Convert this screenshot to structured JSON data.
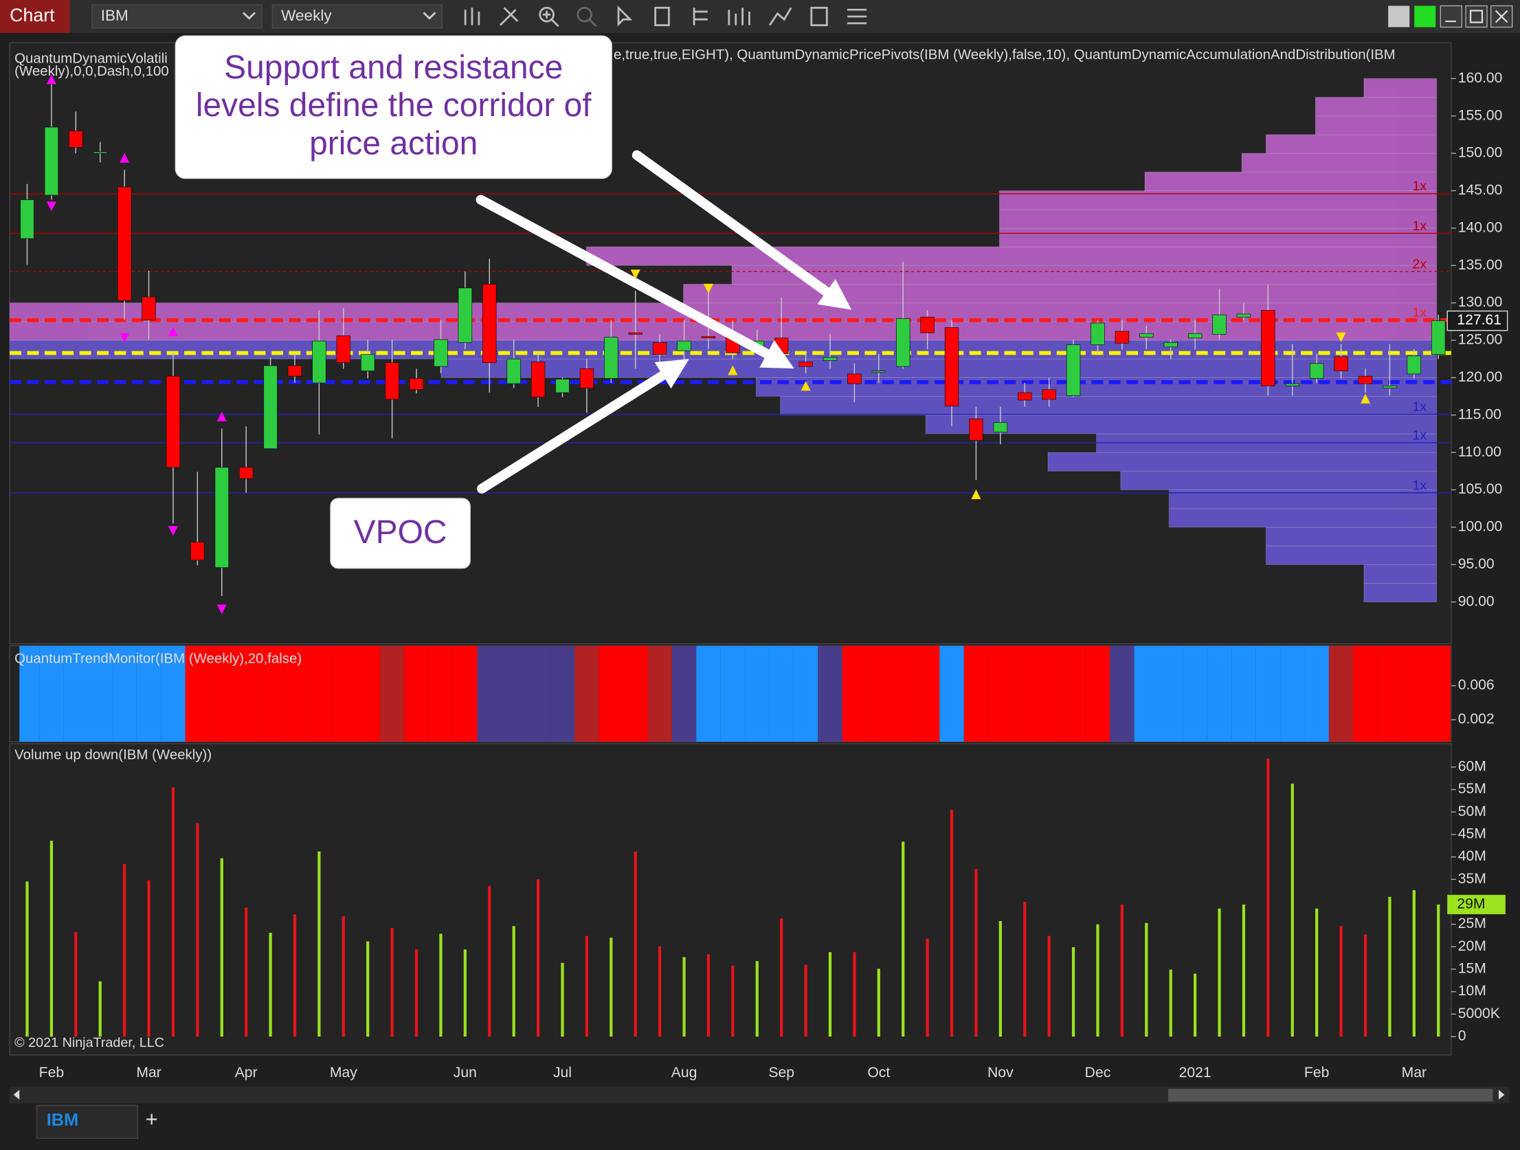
{
  "toolbar": {
    "app_label": "Chart",
    "instrument": "IBM",
    "interval": "Weekly"
  },
  "tabs": {
    "items": [
      "IBM"
    ],
    "add": "+"
  },
  "chart_data": {
    "type": "candlestick",
    "categories": [
      null,
      "Feb",
      null,
      null,
      null,
      "Mar",
      null,
      null,
      null,
      "Apr",
      null,
      null,
      null,
      "May",
      null,
      null,
      null,
      null,
      "Jun",
      null,
      null,
      null,
      "Jul",
      null,
      null,
      null,
      null,
      "Aug",
      null,
      null,
      null,
      "Sep",
      null,
      null,
      null,
      "Oct",
      null,
      null,
      null,
      null,
      "Nov",
      null,
      null,
      null,
      "Dec",
      null,
      null,
      null,
      "2021",
      null,
      null,
      null,
      null,
      "Feb",
      null,
      null,
      null,
      "Mar",
      null
    ],
    "copyright": "© 2021 NinjaTrader, LLC",
    "annotations": [
      {
        "lines": [
          "Support and resistance",
          "levels define the corridor of",
          "price action"
        ]
      },
      {
        "lines": [
          "VPOC"
        ]
      }
    ],
    "price_panel": {
      "indicator_text": [
        "QuantumDynamicVolatili",
        "e,true,true,EIGHT), QuantumDynamicPricePivots(IBM (Weekly),false,10), QuantumDynamicAccumulationAndDistribution(IBM",
        "(Weekly),0,0,Dash,0,100"
      ],
      "up_color": "#2ecc40",
      "down_color": "#ff0000",
      "open": [
        138.6,
        144.4,
        153.0,
        150.2,
        145.5,
        130.8,
        120.2,
        98.0,
        94.6,
        108.0,
        110.5,
        121.6,
        119.3,
        125.6,
        120.9,
        122.0,
        119.9,
        121.5,
        124.7,
        132.5,
        119.2,
        122.1,
        118.0,
        121.2,
        119.9,
        126.0,
        124.7,
        123.6,
        125.5,
        125.4,
        124.1,
        125.3,
        122.1,
        122.3,
        120.5,
        120.9,
        121.5,
        128.1,
        126.7,
        114.5,
        112.7,
        118.0,
        118.4,
        117.6,
        124.4,
        126.2,
        125.4,
        124.1,
        125.3,
        125.8,
        128.1,
        129.0,
        118.9,
        119.9,
        122.8,
        120.2,
        118.6,
        120.5,
        123.1
      ],
      "high": [
        145.9,
        159.2,
        155.6,
        151.5,
        147.8,
        134.3,
        123.6,
        107.4,
        113.2,
        113.5,
        122.7,
        123.2,
        129.0,
        129.3,
        125.1,
        125.1,
        121.2,
        127.7,
        134.2,
        135.9,
        125.1,
        123.5,
        120.0,
        122.5,
        127.7,
        131.6,
        125.8,
        127.7,
        131.6,
        127.7,
        126.4,
        130.7,
        123.2,
        125.8,
        121.9,
        123.2,
        135.5,
        129.0,
        127.7,
        116.1,
        116.1,
        119.3,
        120.0,
        125.1,
        127.7,
        127.7,
        126.9,
        125.1,
        127.7,
        131.9,
        130.0,
        132.4,
        124.5,
        123.2,
        124.5,
        121.2,
        124.5,
        123.8,
        128.4
      ],
      "low": [
        135.1,
        143.8,
        150.0,
        148.8,
        127.7,
        125.1,
        100.5,
        94.9,
        90.8,
        104.6,
        110.5,
        119.3,
        112.4,
        121.2,
        119.9,
        111.9,
        117.9,
        120.6,
        123.8,
        118.0,
        118.6,
        116.1,
        117.4,
        115.3,
        119.3,
        121.2,
        121.9,
        121.9,
        123.8,
        122.5,
        123.2,
        121.9,
        120.6,
        121.2,
        116.7,
        119.3,
        121.2,
        123.8,
        113.5,
        106.3,
        111.1,
        116.1,
        116.1,
        117.4,
        123.2,
        123.8,
        123.8,
        122.5,
        123.8,
        125.1,
        127.7,
        117.6,
        117.6,
        119.3,
        119.9,
        118.0,
        117.6,
        119.9,
        122.5
      ],
      "close": [
        143.8,
        153.5,
        150.8,
        150.2,
        130.3,
        127.7,
        108.0,
        95.6,
        108.0,
        106.5,
        121.6,
        120.2,
        124.9,
        122.0,
        123.1,
        117.1,
        118.4,
        125.1,
        132.0,
        122.0,
        122.5,
        117.4,
        119.8,
        118.6,
        125.4,
        125.8,
        123.1,
        124.9,
        125.4,
        123.3,
        124.9,
        123.2,
        121.5,
        122.7,
        119.2,
        120.9,
        127.9,
        126.0,
        116.2,
        111.6,
        114.0,
        117.0,
        117.1,
        124.4,
        127.3,
        124.6,
        125.9,
        124.7,
        125.9,
        128.4,
        128.5,
        118.9,
        119.2,
        121.9,
        120.9,
        119.2,
        118.9,
        122.9,
        127.61
      ],
      "ylim": [
        84.4,
        164.8
      ],
      "yticks": [
        {
          "value": 90,
          "label": "90.00"
        },
        {
          "value": 95,
          "label": "95.00"
        },
        {
          "value": 100,
          "label": "100.00"
        },
        {
          "value": 105,
          "label": "105.00"
        },
        {
          "value": 110,
          "label": "110.00"
        },
        {
          "value": 115,
          "label": "115.00"
        },
        {
          "value": 120,
          "label": "120.00"
        },
        {
          "value": 125,
          "label": "125.00"
        },
        {
          "value": 130,
          "label": "130.00"
        },
        {
          "value": 135,
          "label": "135.00"
        },
        {
          "value": 140,
          "label": "140.00"
        },
        {
          "value": 145,
          "label": "145.00"
        },
        {
          "value": 150,
          "label": "150.00"
        },
        {
          "value": 155,
          "label": "155.00"
        },
        {
          "value": 160,
          "label": "160.00"
        }
      ],
      "levels": [
        {
          "value": 144.6,
          "color": "#b00000",
          "style": "thin",
          "label": "1x"
        },
        {
          "value": 139.3,
          "color": "#b00000",
          "style": "thin",
          "label": "1x"
        },
        {
          "value": 134.2,
          "color": "#c00000",
          "style": "dotted",
          "label": "2x"
        },
        {
          "value": 127.7,
          "color": "#ff1a1a",
          "style": "thick",
          "label": "1x"
        },
        {
          "value": 123.3,
          "color": "#f5f500",
          "style": "thick"
        },
        {
          "value": 119.4,
          "color": "#1a1aff",
          "style": "thick"
        },
        {
          "value": 115.1,
          "color": "#2020c0",
          "style": "thin",
          "label": "1x"
        },
        {
          "value": 111.3,
          "color": "#2020c0",
          "style": "thin",
          "label": "1x"
        },
        {
          "value": 104.6,
          "color": "#2020c0",
          "style": "thin",
          "label": "1x"
        }
      ],
      "pivots": [
        {
          "index": 1,
          "value": 159.9,
          "color": "#ff00ff",
          "dir": "up"
        },
        {
          "index": 1,
          "value": 142.9,
          "color": "#ff00ff",
          "dir": "down"
        },
        {
          "index": 4,
          "value": 149.4,
          "color": "#ff00ff",
          "dir": "up"
        },
        {
          "index": 4,
          "value": 125.3,
          "color": "#ff00ff",
          "dir": "down"
        },
        {
          "index": 6,
          "value": 126.2,
          "color": "#ff00ff",
          "dir": "up"
        },
        {
          "index": 6,
          "value": 99.5,
          "color": "#ff00ff",
          "dir": "down"
        },
        {
          "index": 8,
          "value": 114.8,
          "color": "#ff00ff",
          "dir": "up"
        },
        {
          "index": 8,
          "value": 89.0,
          "color": "#ff00ff",
          "dir": "down"
        },
        {
          "index": 25,
          "value": 133.8,
          "color": "#ffe000",
          "dir": "down"
        },
        {
          "index": 28,
          "value": 131.9,
          "color": "#ffe000",
          "dir": "down"
        },
        {
          "index": 29,
          "value": 121.0,
          "color": "#ffe000",
          "dir": "up"
        },
        {
          "index": 32,
          "value": 118.9,
          "color": "#ffe000",
          "dir": "up"
        },
        {
          "index": 39,
          "value": 104.4,
          "color": "#ffe000",
          "dir": "up"
        },
        {
          "index": 54,
          "value": 125.4,
          "color": "#ffe000",
          "dir": "down"
        },
        {
          "index": 55,
          "value": 117.2,
          "color": "#ffe000",
          "dir": "up"
        }
      ],
      "volume_profile": {
        "levels": [
          90,
          92.5,
          95,
          97.5,
          100,
          102.5,
          105,
          107.5,
          110,
          112.5,
          115,
          117.5,
          120,
          122.5,
          125,
          127.5,
          130,
          132.5,
          135,
          137.5,
          140,
          142.5,
          145,
          147.5,
          150,
          152.5,
          155,
          157.5
        ],
        "values": [
          75,
          75,
          176,
          176,
          276,
          276,
          326,
          401,
          351,
          527,
          677,
          702,
          1027,
          1472,
          1472,
          1472,
          777,
          727,
          877,
          451,
          451,
          451,
          301,
          201,
          176,
          125,
          125,
          75
        ],
        "colors": [
          "#6a5ad8",
          "#6a5ad8",
          "#6a5ad8",
          "#6a5ad8",
          "#6a5ad8",
          "#6a5ad8",
          "#6a5ad8",
          "#6a5ad8",
          "#6a5ad8",
          "#6a5ad8",
          "#6a5ad8",
          "#6a5ad8",
          "#6a5ad8",
          "#6a5ad8",
          "#c466d2",
          "#c466d2",
          "#c466d2",
          "#c466d2",
          "#c466d2",
          "#c466d2",
          "#c466d2",
          "#c466d2",
          "#c466d2",
          "#c466d2",
          "#c466d2",
          "#c466d2",
          "#c466d2",
          "#c466d2"
        ]
      }
    },
    "trend_panel": {
      "title": "QuantumTrendMonitor(IBM (Weekly),20,false)",
      "ylim": [
        -0.0006,
        0.0107
      ],
      "yticks": [
        0.006,
        0.002
      ],
      "colors": [
        "#1e90ff",
        "#1e90ff",
        "#1e90ff",
        "#1e90ff",
        "#1e90ff",
        "#1e90ff",
        "#1e90ff",
        "#ff0000",
        "#ff0000",
        "#ff0000",
        "#ff0000",
        "#ff0000",
        "#ff0000",
        "#ff0000",
        "#ff0000",
        "#b22222",
        "#ff0000",
        "#ff0000",
        "#ff0000",
        "#483d8b",
        "#483d8b",
        "#483d8b",
        "#483d8b",
        "#b22222",
        "#ff0000",
        "#ff0000",
        "#b22222",
        "#483d8b",
        "#1e90ff",
        "#1e90ff",
        "#1e90ff",
        "#1e90ff",
        "#1e90ff",
        "#483d8b",
        "#ff0000",
        "#ff0000",
        "#ff0000",
        "#ff0000",
        "#1e90ff",
        "#ff0000",
        "#ff0000",
        "#ff0000",
        "#ff0000",
        "#ff0000",
        "#ff0000",
        "#483d8b",
        "#1e90ff",
        "#1e90ff",
        "#1e90ff",
        "#1e90ff",
        "#1e90ff",
        "#1e90ff",
        "#1e90ff",
        "#1e90ff",
        "#b22222",
        "#ff0000",
        "#ff0000",
        "#ff0000",
        "#ff0000"
      ]
    },
    "volume_panel": {
      "title": "Volume up down(IBM (Weekly))",
      "up_color": "#9be21f",
      "down_color": "#e8141c",
      "last_value_label": "29M",
      "values": [
        34500000,
        43600000,
        23300000,
        12300000,
        38400000,
        34800000,
        55500000,
        47500000,
        39700000,
        28700000,
        23100000,
        27200000,
        41200000,
        26800000,
        21200000,
        24200000,
        19400000,
        22900000,
        19400000,
        33500000,
        24600000,
        35000000,
        16400000,
        22400000,
        22000000,
        41200000,
        20100000,
        17700000,
        18300000,
        15800000,
        16800000,
        26300000,
        16000000,
        18800000,
        18800000,
        15100000,
        43400000,
        21800000,
        50500000,
        37300000,
        25700000,
        30000000,
        22400000,
        19900000,
        25000000,
        29400000,
        25300000,
        14900000,
        14000000,
        28500000,
        29400000,
        61900000,
        56300000,
        28500000,
        24600000,
        22700000,
        31100000,
        32600000,
        29400000
      ],
      "ylim": [
        -4100000,
        65200000
      ],
      "yticks": [
        0,
        {
          "value": 5000000,
          "label": "5000K"
        },
        {
          "value": 10000000,
          "label": "10M"
        },
        {
          "value": 15000000,
          "label": "15M"
        },
        {
          "value": 20000000,
          "label": "20M"
        },
        {
          "value": 25000000,
          "label": "25M"
        },
        {
          "value": 30000000,
          "label": "30M"
        },
        {
          "value": 35000000,
          "label": "35M"
        },
        {
          "value": 40000000,
          "label": "40M"
        },
        {
          "value": 45000000,
          "label": "45M"
        },
        {
          "value": 50000000,
          "label": "50M"
        },
        {
          "value": 55000000,
          "label": "55M"
        },
        {
          "value": 60000000,
          "label": "60M"
        }
      ]
    }
  }
}
